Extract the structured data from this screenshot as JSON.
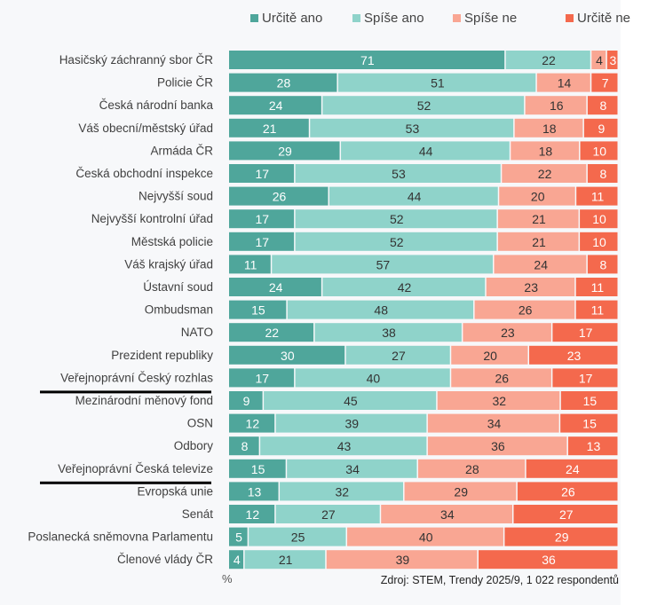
{
  "chart_data": {
    "type": "bar",
    "stacked": true,
    "orientation": "horizontal",
    "unit_label": "%",
    "source": "Zdroj: STEM, Trendy 2025/9, 1 022 respondentů",
    "legend_position": "top",
    "categories": [
      "Hasičský záchranný sbor ČR",
      "Policie ČR",
      "Česká národní banka",
      "Váš obecní/městský úřad",
      "Armáda ČR",
      "Česká obchodní inspekce",
      "Nejvyšší soud",
      "Nejvyšší kontrolní úřad",
      "Městská policie",
      "Váš krajský úřad",
      "Ústavní soud",
      "Ombudsman",
      "NATO",
      "Prezident republiky",
      "Veřejnoprávní Český rozhlas",
      "Mezinárodní měnový fond",
      "OSN",
      "Odbory",
      "Veřejnoprávní Česká televize",
      "Evropská unie",
      "Senát",
      "Poslanecká sněmovna Parlamentu",
      "Členové vlády ČR"
    ],
    "underlined": [
      "Veřejnoprávní Český rozhlas",
      "Veřejnoprávní Česká televize"
    ],
    "series": [
      {
        "name": "Určitě ano",
        "color": "#4fa69b",
        "label_color": "#ffffff",
        "values": [
          71,
          28,
          24,
          21,
          29,
          17,
          26,
          17,
          17,
          11,
          24,
          15,
          22,
          30,
          17,
          9,
          12,
          8,
          15,
          13,
          12,
          5,
          4
        ]
      },
      {
        "name": "Spíše ano",
        "color": "#8fd3ca",
        "label_color": "#333333",
        "values": [
          22,
          51,
          52,
          53,
          44,
          53,
          44,
          52,
          52,
          57,
          42,
          48,
          38,
          27,
          40,
          45,
          39,
          43,
          34,
          32,
          27,
          25,
          21
        ]
      },
      {
        "name": "Spíše ne",
        "color": "#f9a693",
        "label_color": "#333333",
        "values": [
          4,
          14,
          16,
          18,
          18,
          22,
          20,
          21,
          21,
          24,
          23,
          26,
          23,
          20,
          26,
          32,
          34,
          36,
          28,
          29,
          34,
          40,
          39
        ]
      },
      {
        "name": "Určitě ne",
        "color": "#f4694d",
        "label_color": "#ffffff",
        "values": [
          3,
          7,
          8,
          9,
          10,
          8,
          11,
          10,
          10,
          8,
          11,
          11,
          17,
          23,
          17,
          15,
          15,
          13,
          24,
          26,
          27,
          29,
          36
        ]
      }
    ]
  }
}
